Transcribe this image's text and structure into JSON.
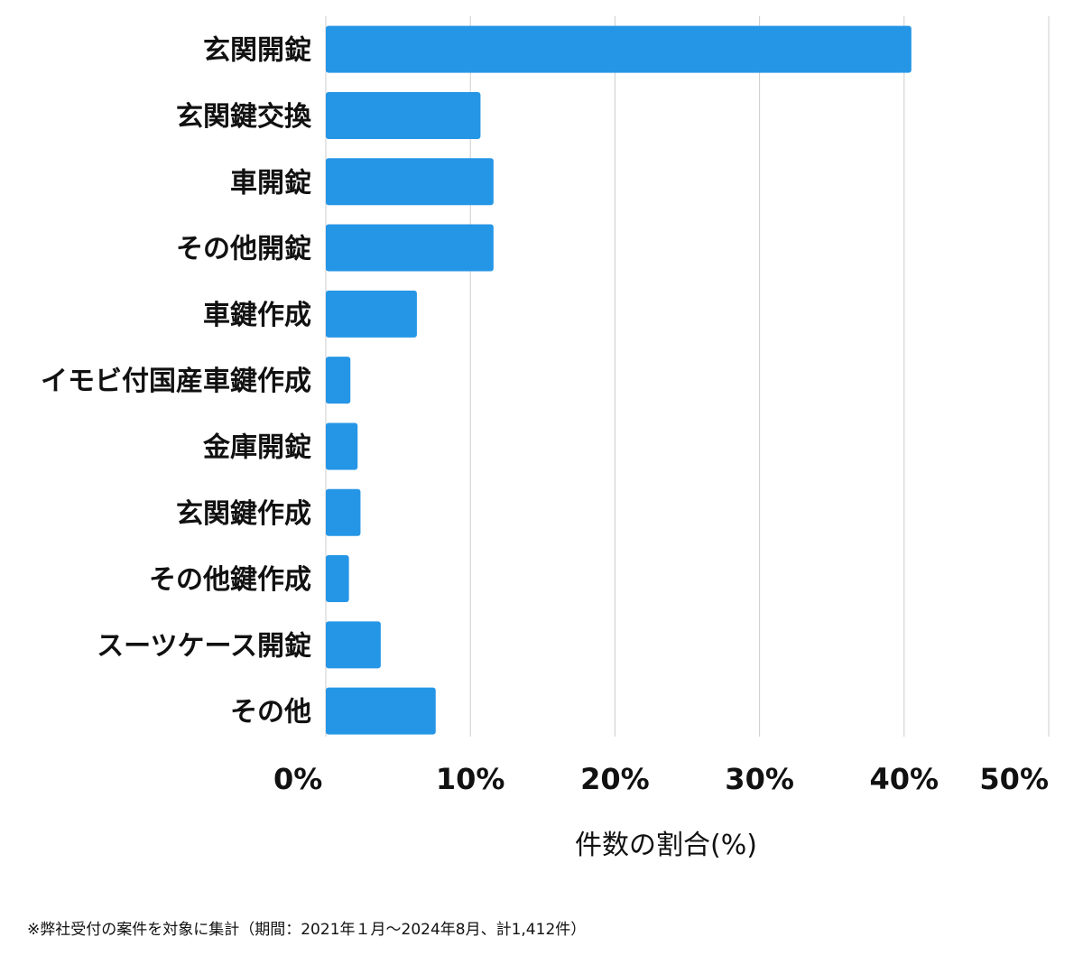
{
  "chart_data": {
    "type": "bar",
    "orientation": "horizontal",
    "categories": [
      "玄関開錠",
      "玄関鍵交換",
      "車開錠",
      "その他開錠",
      "車鍵作成",
      "イモビ付国産車鍵作成",
      "金庫開錠",
      "玄関鍵作成",
      "その他鍵作成",
      "スーツケース開錠",
      "その他"
    ],
    "values": [
      40.5,
      10.7,
      11.6,
      11.6,
      6.3,
      1.7,
      2.2,
      2.4,
      1.6,
      3.8,
      7.6
    ],
    "xlabel": "件数の割合(%)",
    "ylabel": "",
    "xlim": [
      0,
      50
    ],
    "x_ticks": [
      "0%",
      "10%",
      "20%",
      "30%",
      "40%",
      "50%"
    ],
    "grid": "vertical",
    "bar_color": "#2596e6",
    "grid_color": "#cccccc"
  },
  "footnote": "※弊社受付の案件を対象に集計（期間：2021年１月〜2024年8月、計1,412件）"
}
